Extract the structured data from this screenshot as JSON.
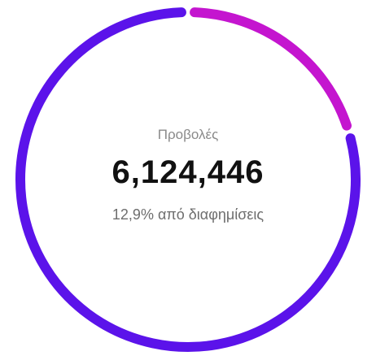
{
  "stat": {
    "label": "Προβολές",
    "value": "6,124,446",
    "subtitle": "12,9% από διαφημίσεις"
  },
  "ring": {
    "segments": [
      {
        "name": "ads",
        "share": 0.129,
        "color": "#c415cf"
      },
      {
        "name": "other",
        "share": 0.871,
        "color": "#5b13ea"
      }
    ]
  }
}
